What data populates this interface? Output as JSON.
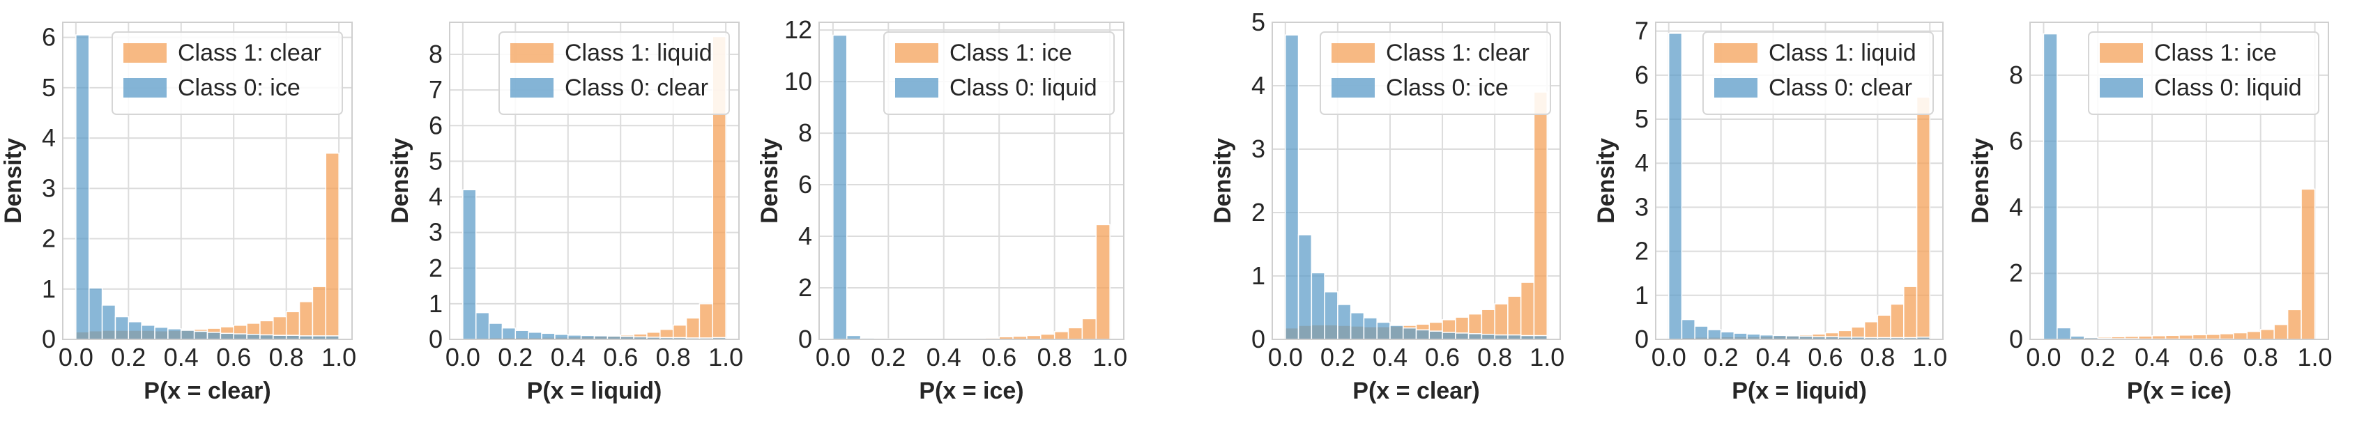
{
  "chart_data": [
    {
      "type": "histogram",
      "xlabel": "P(x = clear)",
      "ylabel": "Density",
      "xlim": [
        0,
        1
      ],
      "ylim": [
        0,
        6.3
      ],
      "yticks": [
        0,
        1,
        2,
        3,
        4,
        5,
        6
      ],
      "xticks": [
        "0.0",
        "0.2",
        "0.4",
        "0.6",
        "0.8",
        "1.0"
      ],
      "bins": 20,
      "legend": "top-right",
      "series": [
        {
          "name": "Class 1: clear",
          "color": "#f4a259",
          "values": [
            0.15,
            0.17,
            0.18,
            0.18,
            0.18,
            0.18,
            0.17,
            0.18,
            0.19,
            0.2,
            0.22,
            0.25,
            0.28,
            0.32,
            0.37,
            0.45,
            0.55,
            0.75,
            1.05,
            3.7
          ]
        },
        {
          "name": "Class 0: ice",
          "color": "#5b9bc8",
          "values": [
            6.05,
            1.02,
            0.68,
            0.45,
            0.35,
            0.28,
            0.24,
            0.21,
            0.18,
            0.16,
            0.14,
            0.12,
            0.11,
            0.1,
            0.09,
            0.08,
            0.08,
            0.07,
            0.07,
            0.07
          ]
        }
      ]
    },
    {
      "type": "histogram",
      "xlabel": "P(x = liquid)",
      "ylabel": "Density",
      "xlim": [
        0,
        1
      ],
      "ylim": [
        0,
        8.9
      ],
      "yticks": [
        0,
        1,
        2,
        3,
        4,
        5,
        6,
        7,
        8
      ],
      "xticks": [
        "0.0",
        "0.2",
        "0.4",
        "0.6",
        "0.8",
        "1.0"
      ],
      "bins": 20,
      "legend": "top-right",
      "series": [
        {
          "name": "Class 1: liquid",
          "color": "#f4a259",
          "values": [
            0.03,
            0.04,
            0.05,
            0.05,
            0.05,
            0.05,
            0.06,
            0.06,
            0.07,
            0.08,
            0.09,
            0.1,
            0.12,
            0.15,
            0.2,
            0.28,
            0.4,
            0.6,
            1.0,
            8.5
          ]
        },
        {
          "name": "Class 0: clear",
          "color": "#5b9bc8",
          "values": [
            4.2,
            0.75,
            0.45,
            0.32,
            0.25,
            0.2,
            0.17,
            0.14,
            0.12,
            0.11,
            0.1,
            0.09,
            0.08,
            0.07,
            0.06,
            0.05,
            0.05,
            0.04,
            0.04,
            0.05
          ]
        }
      ]
    },
    {
      "type": "histogram",
      "xlabel": "P(x = ice)",
      "ylabel": "Density",
      "xlim": [
        0,
        1
      ],
      "ylim": [
        0,
        12.3
      ],
      "yticks": [
        0,
        2,
        4,
        6,
        8,
        10,
        12
      ],
      "xticks": [
        "0.0",
        "0.2",
        "0.4",
        "0.6",
        "0.8",
        "1.0"
      ],
      "bins": 20,
      "legend": "top-right",
      "series": [
        {
          "name": "Class 1: ice",
          "color": "#f4a259",
          "values": [
            0.0,
            0.0,
            0.0,
            0.0,
            0.0,
            0.0,
            0.0,
            0.0,
            0.0,
            0.0,
            0.0,
            0.05,
            0.1,
            0.12,
            0.15,
            0.2,
            0.3,
            0.45,
            0.8,
            4.45
          ]
        },
        {
          "name": "Class 0: liquid",
          "color": "#5b9bc8",
          "values": [
            11.8,
            0.15,
            0.05,
            0.02,
            0.01,
            0.01,
            0.0,
            0.0,
            0.0,
            0.0,
            0.0,
            0.0,
            0.0,
            0.0,
            0.0,
            0.0,
            0.0,
            0.0,
            0.0,
            0.0
          ]
        }
      ]
    },
    {
      "type": "histogram",
      "xlabel": "P(x = clear)",
      "ylabel": "Density",
      "xlim": [
        0,
        1
      ],
      "ylim": [
        0,
        5.0
      ],
      "yticks": [
        0,
        1,
        2,
        3,
        4,
        5
      ],
      "xticks": [
        "0.0",
        "0.2",
        "0.4",
        "0.6",
        "0.8",
        "1.0"
      ],
      "bins": 20,
      "legend": "top-right",
      "series": [
        {
          "name": "Class 1: clear",
          "color": "#f4a259",
          "values": [
            0.18,
            0.22,
            0.23,
            0.23,
            0.22,
            0.21,
            0.2,
            0.2,
            0.21,
            0.22,
            0.24,
            0.27,
            0.31,
            0.35,
            0.4,
            0.47,
            0.56,
            0.68,
            0.9,
            3.9
          ]
        },
        {
          "name": "Class 0: ice",
          "color": "#5b9bc8",
          "values": [
            4.8,
            1.65,
            1.05,
            0.75,
            0.55,
            0.42,
            0.34,
            0.27,
            0.22,
            0.18,
            0.15,
            0.13,
            0.11,
            0.1,
            0.09,
            0.08,
            0.07,
            0.07,
            0.06,
            0.06
          ]
        }
      ]
    },
    {
      "type": "histogram",
      "xlabel": "P(x = liquid)",
      "ylabel": "Density",
      "xlim": [
        0,
        1
      ],
      "ylim": [
        0,
        7.2
      ],
      "yticks": [
        0,
        1,
        2,
        3,
        4,
        5,
        6,
        7
      ],
      "xticks": [
        "0.0",
        "0.2",
        "0.4",
        "0.6",
        "0.8",
        "1.0"
      ],
      "bins": 20,
      "legend": "top-right",
      "series": [
        {
          "name": "Class 1: liquid",
          "color": "#f4a259",
          "values": [
            0.03,
            0.04,
            0.05,
            0.05,
            0.06,
            0.06,
            0.06,
            0.07,
            0.08,
            0.09,
            0.1,
            0.12,
            0.15,
            0.2,
            0.28,
            0.4,
            0.55,
            0.8,
            1.2,
            5.5
          ]
        },
        {
          "name": "Class 0: clear",
          "color": "#5b9bc8",
          "values": [
            6.95,
            0.45,
            0.3,
            0.22,
            0.17,
            0.14,
            0.12,
            0.1,
            0.09,
            0.08,
            0.07,
            0.06,
            0.06,
            0.05,
            0.05,
            0.04,
            0.04,
            0.04,
            0.04,
            0.05
          ]
        }
      ]
    },
    {
      "type": "histogram",
      "xlabel": "P(x = ice)",
      "ylabel": "Density",
      "xlim": [
        0,
        1
      ],
      "ylim": [
        0,
        9.6
      ],
      "yticks": [
        0,
        2,
        4,
        6,
        8
      ],
      "xticks": [
        "0.0",
        "0.2",
        "0.4",
        "0.6",
        "0.8",
        "1.0"
      ],
      "bins": 20,
      "legend": "top-right",
      "series": [
        {
          "name": "Class 1: ice",
          "color": "#f4a259",
          "values": [
            0.03,
            0.04,
            0.05,
            0.06,
            0.07,
            0.08,
            0.09,
            0.1,
            0.11,
            0.12,
            0.13,
            0.14,
            0.15,
            0.17,
            0.2,
            0.24,
            0.3,
            0.45,
            0.9,
            4.55
          ]
        },
        {
          "name": "Class 0: liquid",
          "color": "#5b9bc8",
          "values": [
            9.25,
            0.35,
            0.1,
            0.05,
            0.03,
            0.02,
            0.02,
            0.01,
            0.01,
            0.01,
            0.01,
            0.01,
            0.01,
            0.01,
            0.0,
            0.0,
            0.0,
            0.0,
            0.0,
            0.0
          ]
        }
      ]
    }
  ]
}
